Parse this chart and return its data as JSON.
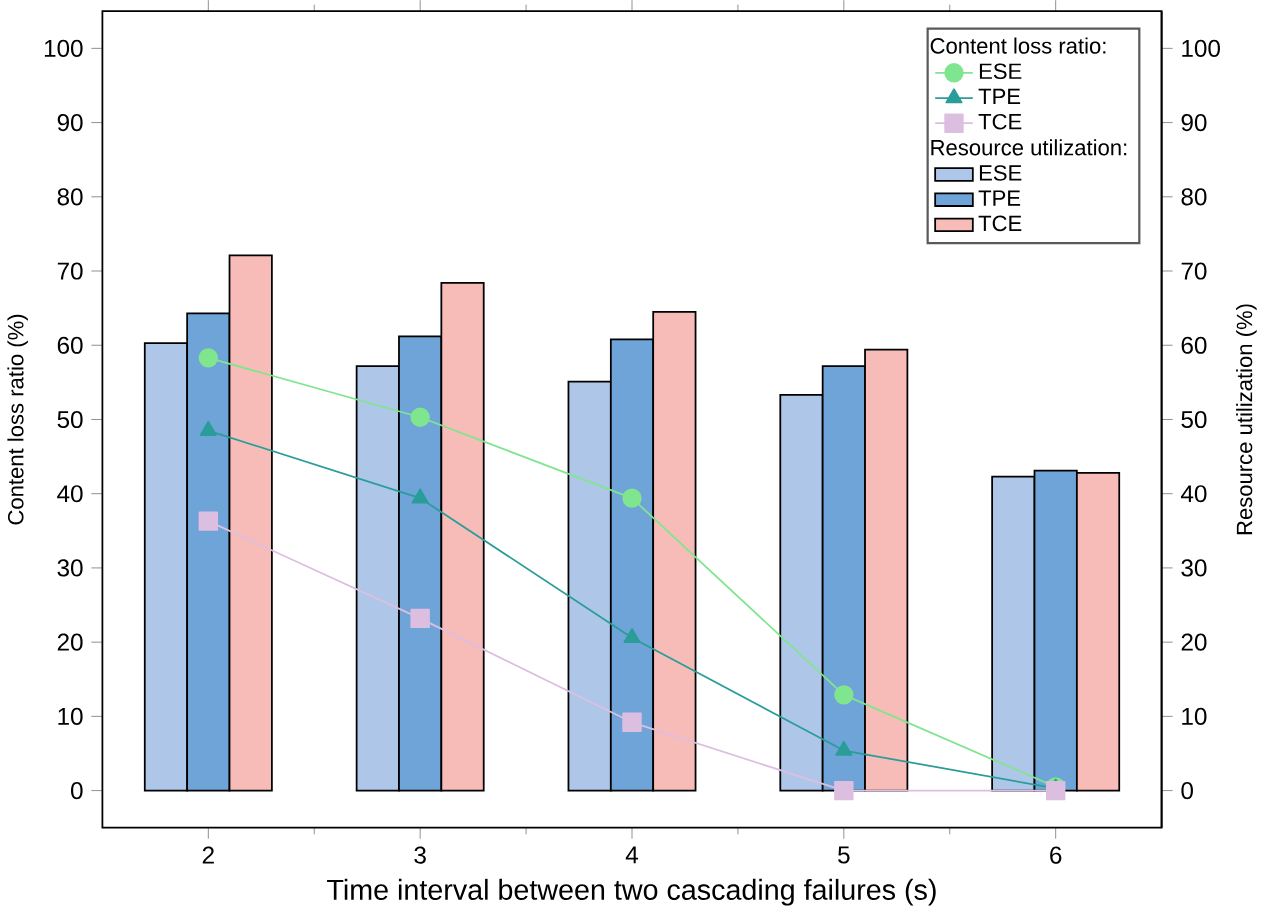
{
  "chart_data": {
    "type": "line",
    "xlabel": "Time interval between two cascading failures (s)",
    "ylabel": "Content loss ratio (%)",
    "y2label": "Resource utilization (%)",
    "annotations": [
      "Content loss ratio:",
      "Resource utilization:"
    ],
    "x": [
      2,
      3,
      4,
      5,
      6
    ],
    "xlim": [
      1.5,
      6.5
    ],
    "xticks": [
      2,
      3,
      4,
      5,
      6,
      {
        "value": 2.5,
        "label": null
      },
      {
        "value": 3.5,
        "label": null
      },
      {
        "value": 4.5,
        "label": null
      },
      {
        "value": 5.5,
        "label": null
      }
    ],
    "ylim": [
      -5,
      105
    ],
    "yticks": [
      0,
      10,
      20,
      30,
      40,
      50,
      60,
      70,
      80,
      90,
      100
    ],
    "y2lim": [
      -5,
      105
    ],
    "y2ticks": [
      0,
      10,
      20,
      30,
      40,
      50,
      60,
      70,
      80,
      90,
      100
    ],
    "legend": "top right",
    "line_style": "solid",
    "grid": false,
    "series": [
      {
        "name": "ESE",
        "marker": "circle",
        "color": "#80e58f",
        "values": [
          58.3,
          50.3,
          39.4,
          12.9,
          0.5
        ]
      },
      {
        "name": "TPE",
        "marker": "triangle",
        "color": "#2a9d99",
        "values": [
          48.5,
          39.4,
          20.6,
          5.4,
          0.3
        ]
      },
      {
        "name": "TCE",
        "marker": "square",
        "color": "#dcbfe0",
        "values": [
          36.3,
          23.2,
          9.2,
          0,
          0
        ]
      },
      {
        "name": "ESE",
        "type": "bar",
        "axis": "y2",
        "color": "#aec7e8",
        "values": [
          60.3,
          57.2,
          55.1,
          53.3,
          42.3
        ]
      },
      {
        "name": "TPE",
        "type": "bar",
        "axis": "y2",
        "color": "#6fa4d8",
        "values": [
          64.3,
          61.2,
          60.8,
          57.2,
          43.1
        ]
      },
      {
        "name": "TCE",
        "type": "bar",
        "axis": "y2",
        "color": "#f7bcb8",
        "values": [
          72.1,
          68.4,
          64.5,
          59.4,
          42.8
        ]
      }
    ]
  }
}
